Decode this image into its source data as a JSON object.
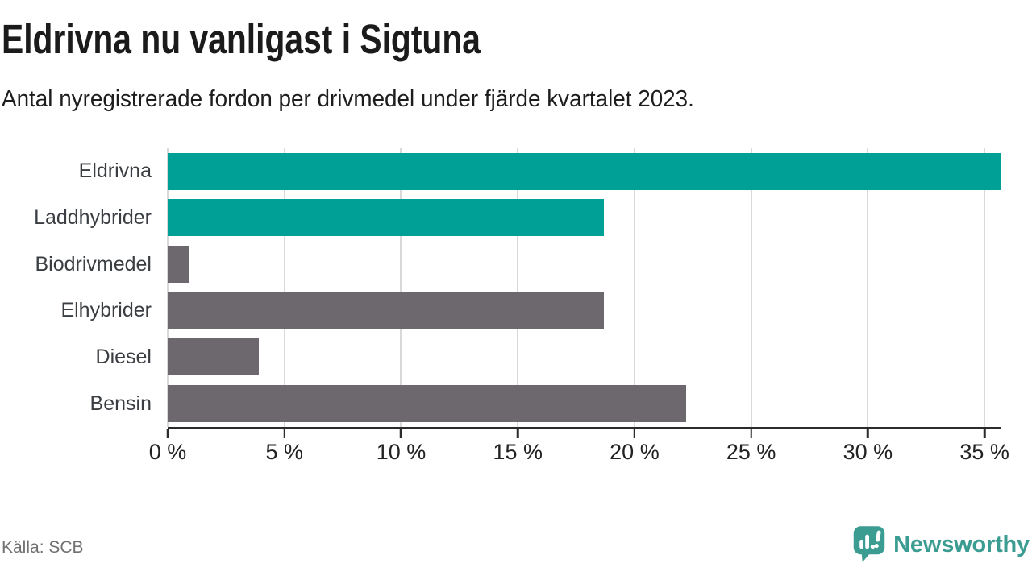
{
  "header": {
    "title": "Eldrivna nu vanligast i Sigtuna",
    "subtitle": "Antal nyregistrerade fordon per drivmedel under fjärde kvartalet 2023."
  },
  "footer": {
    "source": "Källa: SCB",
    "brand": "Newsworthy"
  },
  "colors": {
    "bar_teal": "#00a096",
    "bar_gray": "#6c686e",
    "brand_teal": "#3b9c92",
    "grid_line": "#d9d9d9",
    "axis_line": "#2b2b2b",
    "title_text": "#1b1b1b",
    "category_text": "#3a3e42",
    "source_text": "#707070"
  },
  "chart_data": {
    "type": "bar",
    "orientation": "horizontal",
    "title": "Eldrivna nu vanligast i Sigtuna",
    "subtitle": "Antal nyregistrerade fordon per drivmedel under fjärde kvartalet 2023.",
    "categories": [
      "Eldrivna",
      "Laddhybrider",
      "Biodrivmedel",
      "Elhybrider",
      "Diesel",
      "Bensin"
    ],
    "values": [
      35.7,
      18.7,
      0.9,
      18.7,
      3.9,
      22.2
    ],
    "unit": "%",
    "bar_colors": [
      "#00a096",
      "#00a096",
      "#6c686e",
      "#6c686e",
      "#6c686e",
      "#6c686e"
    ],
    "xlim": [
      0,
      35.72
    ],
    "xticks": [
      0,
      5,
      10,
      15,
      20,
      25,
      30,
      35
    ],
    "xtick_labels": [
      "0 %",
      "5 %",
      "10 %",
      "15 %",
      "20 %",
      "25 %",
      "30 %",
      "35 %"
    ],
    "xlabel": "",
    "ylabel": "",
    "grid": "vertical",
    "legend": false
  }
}
